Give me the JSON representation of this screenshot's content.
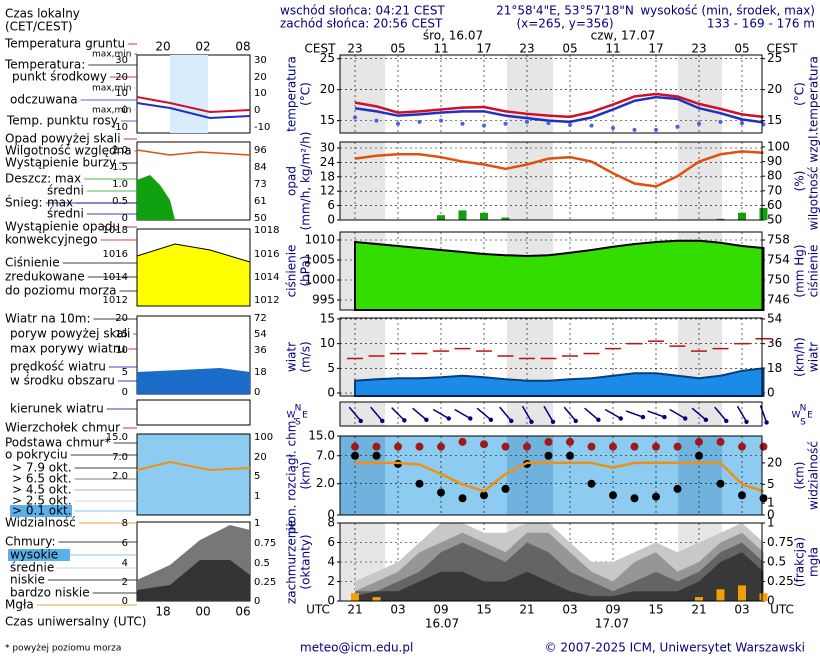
{
  "header": {
    "sunrise": "wschód słońca: 04:21 CEST",
    "sunset": "zachód słońca: 20:56 CEST",
    "coords": "21°58'4\"E, 53°57'18\"N",
    "grid": "(x=265, y=356)",
    "elevation_title": "wysokość (min, środek, max)",
    "elevation": "133 - 169 - 176 m"
  },
  "time_axis": {
    "zone_top": "CEST",
    "zone_bottom": "UTC",
    "categories": [
      "21",
      null,
      "03",
      null,
      "09",
      null,
      "15",
      null,
      "21",
      null,
      "03",
      null,
      "09",
      null,
      "15",
      null,
      "21",
      null,
      "03",
      null
    ],
    "local": [
      "23",
      null,
      "05",
      null,
      "11",
      null,
      "17",
      null,
      "23",
      null,
      "05",
      null,
      "11",
      null,
      "17",
      null,
      "23",
      null,
      "05",
      null
    ],
    "days_top": [
      "śro, 16.07",
      "czw, 17.07"
    ],
    "days_bottom": [
      "16.07",
      "17.07"
    ]
  },
  "chart_data": [
    {
      "type": "line",
      "ylabel": [
        "temperatura",
        "(°C)"
      ],
      "y2label": [
        "(°C)",
        "temperatura"
      ],
      "ylim": [
        13,
        25.6
      ],
      "yticks": [
        15,
        20,
        25
      ],
      "y2lim": [
        13,
        25.6
      ],
      "y2ticks": [
        15,
        20,
        25
      ],
      "series": [
        {
          "name": "punkt środkowy",
          "color": "#d0102a",
          "style": "line",
          "values": [
            17.9,
            17.3,
            16.3,
            16.5,
            16.8,
            17.1,
            17.2,
            16.5,
            16.1,
            15.8,
            15.6,
            16.4,
            17.6,
            18.9,
            19.3,
            18.9,
            17.7,
            16.9,
            16.0,
            15.6
          ]
        },
        {
          "name": "odczuwana",
          "color": "#2030c0",
          "style": "line",
          "values": [
            17.0,
            16.5,
            15.8,
            16.0,
            16.3,
            16.5,
            16.5,
            15.8,
            15.4,
            15.0,
            14.8,
            15.5,
            16.8,
            18.2,
            18.8,
            18.5,
            17.0,
            16.2,
            15.2,
            14.7
          ]
        },
        {
          "name": "Temp. punktu rosy",
          "color": "#5060e0",
          "style": "dots",
          "values": [
            15.5,
            15.0,
            14.5,
            14.8,
            15.0,
            14.5,
            14.2,
            14.5,
            14.8,
            14.6,
            14.3,
            14.2,
            13.8,
            13.5,
            13.5,
            14.0,
            14.5,
            14.8,
            14.6,
            14.4
          ]
        }
      ]
    },
    {
      "type": "bar",
      "ylabel": [
        "opad",
        "(mm/h, kg/m²/h)"
      ],
      "y2label": [
        "(%)",
        "wilgotność wzgl."
      ],
      "ylim": [
        0,
        32.5
      ],
      "yticks": [
        0,
        6,
        12,
        18,
        24,
        30
      ],
      "y2lim": [
        50,
        103.4
      ],
      "y2ticks": [
        50,
        60,
        70,
        80,
        90,
        100
      ],
      "series": [
        {
          "name": "Wilgotność względna",
          "color": "#e05010",
          "style": "line",
          "axis": "y2",
          "values": [
            92,
            94,
            95,
            95,
            93,
            90,
            88,
            85,
            88,
            92,
            93,
            90,
            82,
            75,
            73,
            80,
            90,
            95,
            97,
            96
          ]
        },
        {
          "name": "Deszcz: max",
          "color": "#10a010",
          "style": "bars",
          "values": [
            0,
            0,
            0,
            0,
            2,
            4,
            3,
            1,
            0,
            0,
            0,
            0,
            0,
            0,
            0,
            0,
            0,
            0.5,
            3,
            5
          ]
        }
      ]
    },
    {
      "type": "area",
      "ylabel": [
        "ciśnienie",
        "(hPa)"
      ],
      "y2label": [
        "(mm Hg)",
        "ciśnienie"
      ],
      "ylim": [
        992.5,
        1012
      ],
      "yticks": [
        995,
        1000,
        1005,
        1010
      ],
      "y2lim": [
        744,
        759.6
      ],
      "y2ticks": [
        746,
        750,
        754,
        758
      ],
      "series": [
        {
          "name": "Ciśnienie",
          "color": "#33dd00",
          "style": "area",
          "values": [
            1009.5,
            1009,
            1008.5,
            1008,
            1007.5,
            1007,
            1006.5,
            1006.2,
            1006,
            1006.2,
            1006.8,
            1007.5,
            1008.3,
            1009,
            1009.5,
            1009.8,
            1009.8,
            1009.3,
            1008.5,
            1008
          ]
        }
      ]
    },
    {
      "type": "area",
      "ylabel": [
        "wiatr",
        "(m/s)"
      ],
      "y2label": [
        "(km/h)",
        "wiatr"
      ],
      "ylim": [
        -0.6,
        15.2
      ],
      "yticks": [
        0,
        5,
        10,
        15
      ],
      "y2lim": [
        -2.2,
        54.7
      ],
      "y2ticks": [
        0,
        18,
        36,
        54
      ],
      "series": [
        {
          "name": "prędkość wiatru",
          "color": "#1a8ce8",
          "style": "area",
          "values": [
            2.5,
            2.8,
            3,
            3,
            3.2,
            3.5,
            3.2,
            2.8,
            2.5,
            2.5,
            2.8,
            3,
            3.5,
            4,
            4,
            3.5,
            3,
            3.5,
            4.5,
            5
          ]
        },
        {
          "name": "max porywy wiatru",
          "color": "#c01010",
          "style": "dashes",
          "values": [
            7,
            7.5,
            8,
            8,
            8.5,
            9,
            8.5,
            7.5,
            7,
            7,
            7.5,
            8,
            9,
            10,
            10.5,
            9.5,
            8.5,
            9,
            10,
            11
          ]
        }
      ]
    },
    {
      "type": "arrows",
      "compass": [
        "N",
        "W",
        "E",
        "S"
      ],
      "series": [
        {
          "name": "kierunek wiatru",
          "color": "#000080",
          "style": "arrows",
          "values": [
            320,
            320,
            315,
            310,
            300,
            300,
            310,
            320,
            330,
            330,
            320,
            310,
            300,
            290,
            290,
            300,
            310,
            320,
            330,
            340
          ]
        }
      ]
    },
    {
      "type": "scatter",
      "scale": "log1p",
      "ylabel": [
        "pion. rozciągł. chm.",
        "(km)"
      ],
      "y2label": [
        "(km)",
        "widzialność"
      ],
      "ylim": [
        0,
        15
      ],
      "yticks": [
        0,
        {
          "value": 2,
          "label": "2.0"
        },
        {
          "value": 7,
          "label": "7.0"
        },
        {
          "value": 15,
          "label": "15.0"
        }
      ],
      "y2lim": [
        0,
        100
      ],
      "y2ticks": [
        0,
        1,
        5,
        20
      ],
      "series": [
        {
          "name": "> 7.9 okt.",
          "color": "#000000",
          "style": "dots",
          "values": [
            7,
            7,
            5,
            2,
            1.2,
            0.8,
            1,
            1.5,
            5,
            7,
            7,
            2,
            1,
            0.8,
            0.9,
            1.5,
            7,
            2,
            1,
            0.8
          ]
        },
        {
          "name": "Wierzchołek chmur",
          "color": "#a01818",
          "style": "dots",
          "values": [
            10,
            10,
            10,
            10,
            10,
            12,
            11,
            10,
            10,
            12,
            12,
            10,
            10,
            10,
            10,
            10,
            12,
            12,
            10,
            10
          ]
        },
        {
          "name": "Widzialność",
          "color": "#f09010",
          "style": "line",
          "axis": "y2",
          "values": [
            20,
            20,
            20,
            18,
            10,
            5,
            3,
            10,
            20,
            20,
            20,
            20,
            15,
            20,
            20,
            20,
            20,
            20,
            5,
            3
          ]
        }
      ]
    },
    {
      "type": "area",
      "ylabel": [
        "zachmurzenie",
        "(oktanty)"
      ],
      "y2label": [
        "(frakcja)",
        "mgła"
      ],
      "ylim": [
        0,
        8
      ],
      "yticks": [
        0,
        2,
        4,
        6,
        8
      ],
      "y2lim": [
        0,
        1
      ],
      "y2ticks": [
        0,
        0.25,
        0.5,
        0.75,
        1
      ],
      "series": [
        {
          "name": "wysokie",
          "color": "#c8c8c8",
          "style": "area",
          "values": [
            2,
            3,
            4,
            6,
            8,
            8,
            7,
            7,
            8,
            8,
            6,
            4,
            4,
            5,
            6,
            5,
            6,
            7,
            8,
            6
          ]
        },
        {
          "name": "średnie",
          "color": "#969696",
          "style": "area",
          "values": [
            1,
            2,
            3,
            5,
            6,
            7,
            6,
            5,
            7,
            7,
            5,
            3,
            2,
            4,
            5,
            3,
            4,
            6,
            7,
            5
          ]
        },
        {
          "name": "niskie",
          "color": "#646464",
          "style": "area",
          "values": [
            1,
            1,
            2,
            3,
            5,
            6,
            5,
            4,
            6,
            5,
            3,
            2,
            1,
            2,
            3,
            2,
            3,
            5,
            6,
            4
          ]
        },
        {
          "name": "bardzo niskie",
          "color": "#383838",
          "style": "area",
          "values": [
            0.5,
            1,
            1,
            2,
            3,
            3,
            2,
            2,
            3,
            2,
            1,
            0.5,
            0.5,
            1,
            1,
            1,
            2,
            4,
            5,
            3
          ]
        },
        {
          "name": "Mgła",
          "color": "#f0a000",
          "style": "bars",
          "axis": "y2",
          "values": [
            0.1,
            0.05,
            0,
            0,
            0,
            0,
            0,
            0,
            0,
            0,
            0,
            0,
            0,
            0,
            0,
            0,
            0.05,
            0.15,
            0.2,
            0.1
          ]
        }
      ]
    }
  ],
  "legend": {
    "local_time": [
      "Czas lokalny",
      "(CET/CEST)"
    ],
    "utc_time": "Czas uniwersalny (UTC)",
    "note": "* powyżej poziomu morza",
    "mini_top_hours": [
      "20",
      "02",
      "08"
    ],
    "mini_bottom_hours": [
      "18",
      "00",
      "06"
    ],
    "items": [
      "Temperatura gruntu",
      "max,min",
      "Temperatura:",
      "max,min",
      "max,min",
      "Opad powyżej skali",
      "Wystąpienie burzy",
      "średni",
      "Śnieg:",
      "max",
      "średni",
      "Wystąpienie opadu",
      "konwekcyjnego",
      "Ciśnienie",
      "zredukowane",
      "do poziomu morza",
      "Wiatr na 10m:",
      "poryw powyżej skali",
      "w środku obszaru",
      "Podstawa chmur*",
      "o pokryciu",
      "> 6.5 okt.",
      "> 4.5 okt.",
      "> 2.5 okt.",
      "> 0.1 okt.",
      "Chmury:"
    ],
    "mini_ticks": [
      {
        "left": [
          "30",
          "20",
          "10",
          "0",
          "-10"
        ],
        "right": [
          "30",
          "20",
          "10",
          "0",
          "-10"
        ]
      },
      {
        "left": [
          "2.0",
          "1.5",
          "1.0",
          "0.5",
          "0"
        ],
        "right": [
          "96",
          "84",
          "73",
          "61",
          "50"
        ]
      },
      {
        "left": [
          "1018",
          "1016",
          "1014",
          "1012"
        ],
        "right": [
          "1018",
          "1016",
          "1014",
          "1012"
        ]
      },
      {
        "left": [
          "20",
          "15",
          "10",
          "5",
          "0"
        ],
        "right": [
          "72",
          "54",
          "36",
          "18",
          "0"
        ]
      },
      {
        "left": [
          "15.0",
          "7.0",
          "2.0"
        ],
        "right": [
          "100",
          "20",
          "5",
          "1"
        ]
      },
      {
        "left": [
          "8",
          "6",
          "4",
          "2",
          "0"
        ],
        "right": [
          "1",
          "0.75",
          "0.5",
          "0.25",
          "0"
        ]
      }
    ]
  },
  "footer": {
    "email": "meteo@icm.edu.pl",
    "copyright": "© 2007-2025 ICM, Uniwersytet Warszawski"
  }
}
